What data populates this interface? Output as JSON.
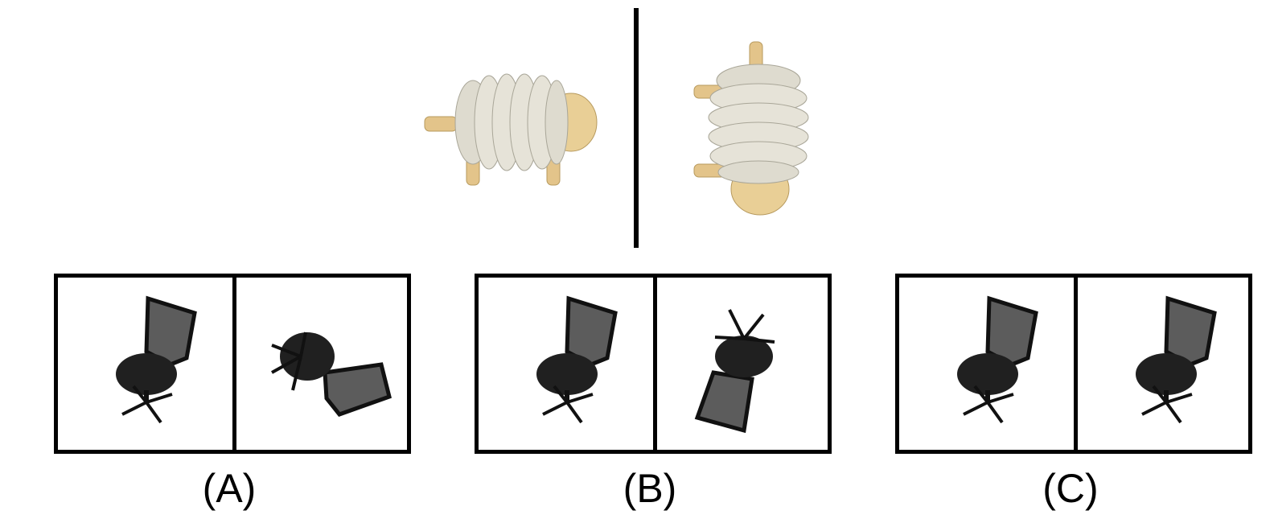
{
  "options": [
    {
      "label": "(A)"
    },
    {
      "label": "(B)"
    },
    {
      "label": "(C)"
    }
  ],
  "colors": {
    "wood": "#e6c98d",
    "coil": "#e4e2d6",
    "chair": "#1f1f1f",
    "mesh": "#5a5a5a",
    "line": "#000000"
  }
}
